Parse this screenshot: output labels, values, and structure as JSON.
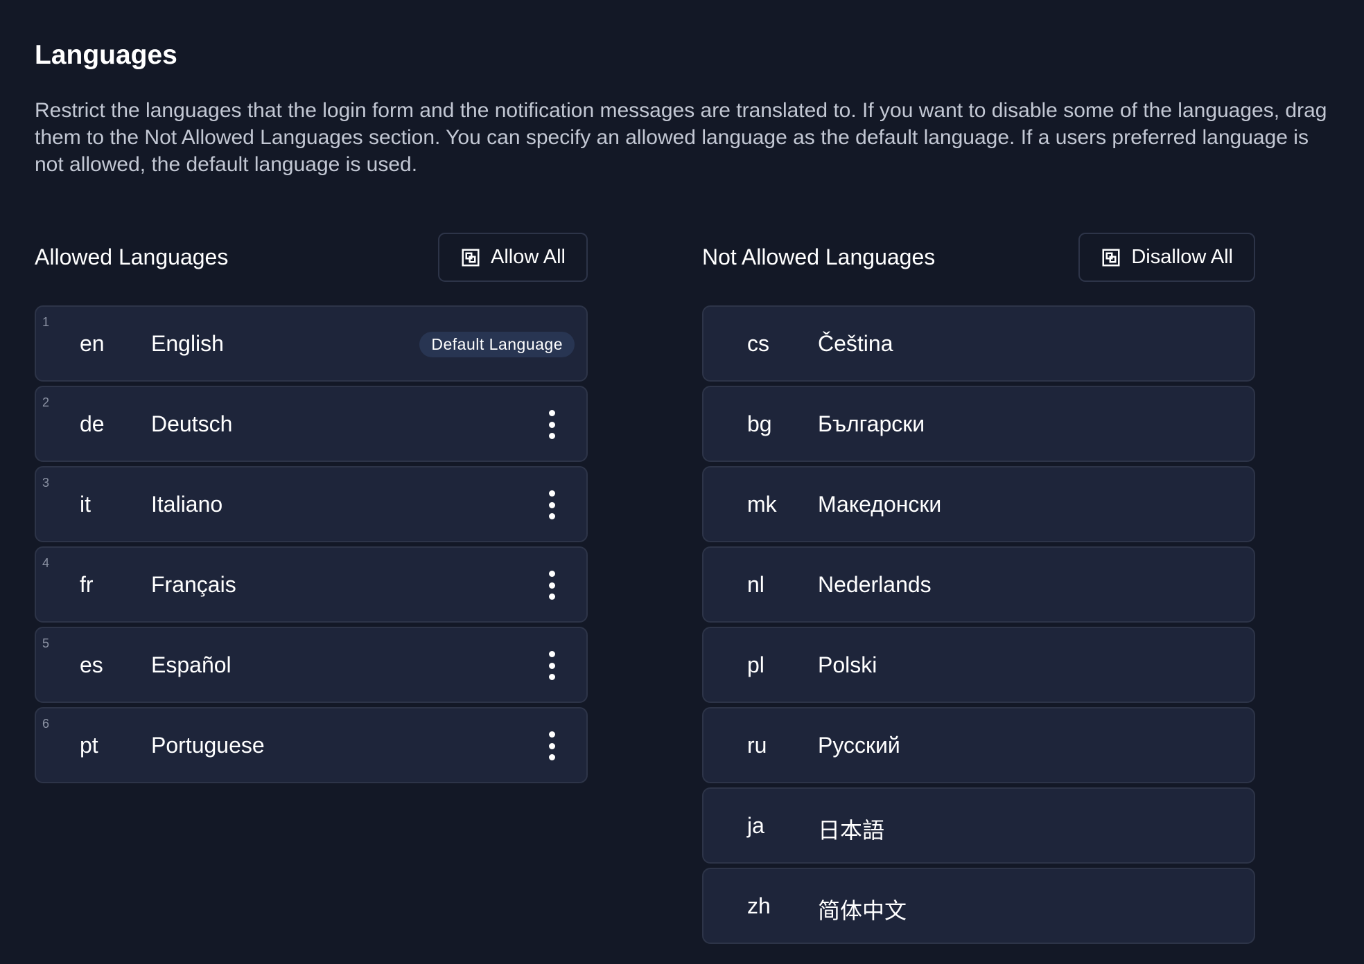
{
  "title": "Languages",
  "description": "Restrict the languages that the login form and the notification messages are translated to. If you want to disable some of the languages, drag them to the Not Allowed Languages section. You can specify an allowed language as the default language. If a users preferred language is not allowed, the default language is used.",
  "allowed": {
    "heading": "Allowed Languages",
    "button": "Allow All",
    "default_badge": "Default Language",
    "items": [
      {
        "num": "1",
        "code": "en",
        "name": "English"
      },
      {
        "num": "2",
        "code": "de",
        "name": "Deutsch"
      },
      {
        "num": "3",
        "code": "it",
        "name": "Italiano"
      },
      {
        "num": "4",
        "code": "fr",
        "name": "Français"
      },
      {
        "num": "5",
        "code": "es",
        "name": "Español"
      },
      {
        "num": "6",
        "code": "pt",
        "name": "Portuguese"
      }
    ]
  },
  "not_allowed": {
    "heading": "Not Allowed Languages",
    "button": "Disallow All",
    "items": [
      {
        "code": "cs",
        "name": "Čeština"
      },
      {
        "code": "bg",
        "name": "Български"
      },
      {
        "code": "mk",
        "name": "Македонски"
      },
      {
        "code": "nl",
        "name": "Nederlands"
      },
      {
        "code": "pl",
        "name": "Polski"
      },
      {
        "code": "ru",
        "name": "Русский"
      },
      {
        "code": "ja",
        "name": "日本語"
      },
      {
        "code": "zh",
        "name": "简体中文"
      }
    ]
  },
  "colors": {
    "background": "#131826",
    "row": "#1e253a",
    "border": "#2d3448",
    "badge": "#283552"
  }
}
